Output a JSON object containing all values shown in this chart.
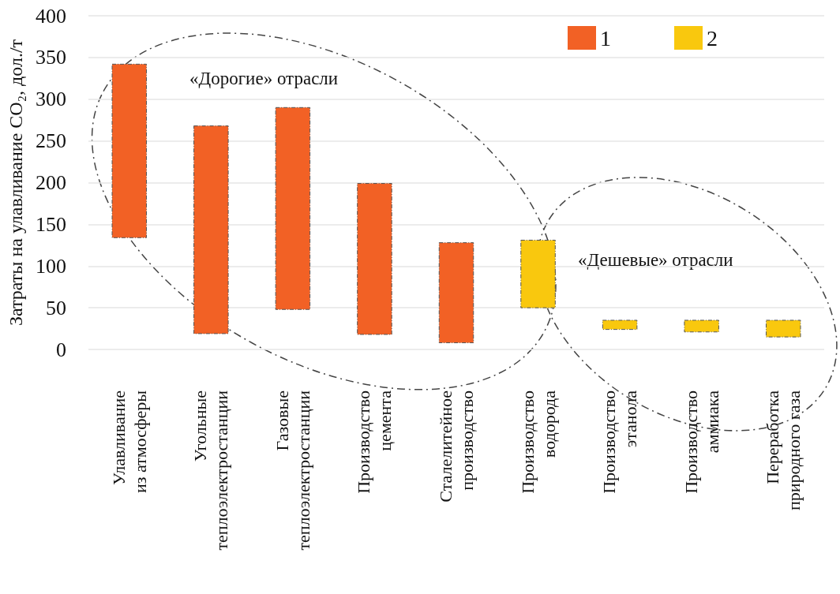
{
  "chart_data": {
    "type": "bar",
    "ylabel": "Затраты на улавливание CO₂, дол./т",
    "categories": [
      "Улавливание\nиз атмосферы",
      "Угольные\nтеплоэлектростанции",
      "Газовые\nтеплоэлектростанции",
      "Производство\nцемента",
      "Сталелитейное\nпроизводство",
      "Производство\nводорода",
      "Производство\nэтанола",
      "Производство\nаммиака",
      "Переработка\nприродного газа"
    ],
    "series": [
      {
        "name": "1",
        "color": "#f26125",
        "base": [
          134,
          19,
          48,
          18,
          8,
          null,
          null,
          null,
          null
        ],
        "values": [
          208,
          249,
          242,
          181,
          120,
          null,
          null,
          null,
          null
        ]
      },
      {
        "name": "2",
        "color": "#f9c80e",
        "base": [
          null,
          null,
          null,
          null,
          null,
          50,
          24,
          21,
          15
        ],
        "values": [
          null,
          null,
          null,
          null,
          null,
          81,
          11,
          14,
          20
        ]
      }
    ],
    "ylim": [
      0,
      400
    ],
    "yticks": [
      0,
      50,
      100,
      150,
      200,
      250,
      300,
      350,
      400
    ],
    "grid": "y",
    "legend": "top right",
    "annotations": [
      "«Дорогие» отрасли",
      "«Дешевые» отрасли"
    ]
  }
}
